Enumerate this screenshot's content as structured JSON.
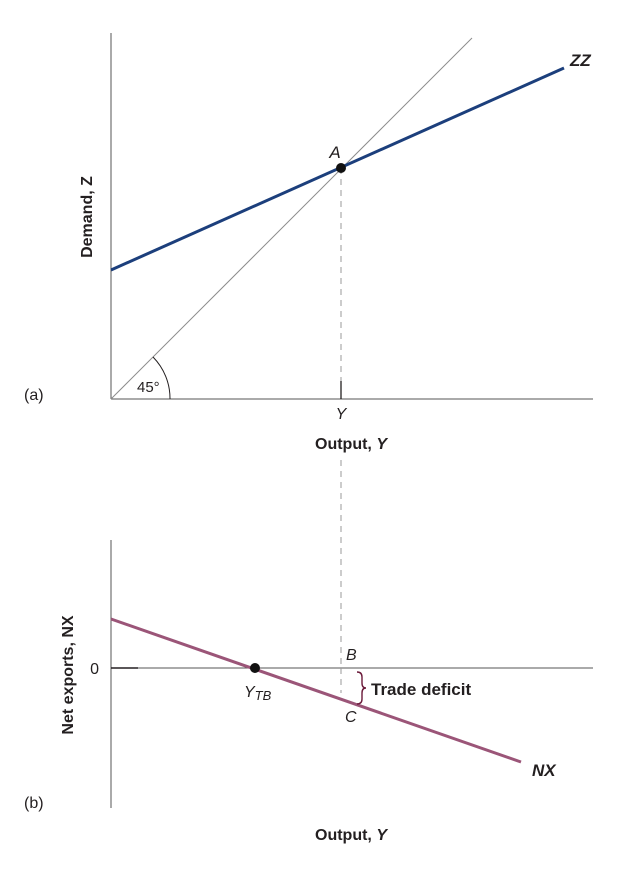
{
  "panel_a": {
    "tag": "(a)",
    "y_axis_label": "Demand, Z",
    "x_axis_label": "Output, ",
    "x_axis_symbol": "Y",
    "tick_label": "Y",
    "angle_label": "45°",
    "point_label": "A",
    "curve_label": "ZZ",
    "curve_color": "#1c3f7c"
  },
  "panel_b": {
    "tag": "(b)",
    "y_axis_label": "Net exports, NX",
    "x_axis_label": "Output, ",
    "x_axis_symbol": "Y",
    "zero_label": "0",
    "point_tb_main": "Y",
    "point_tb_sub": "TB",
    "point_b_label": "B",
    "point_c_label": "C",
    "bracket_label": "Trade deficit",
    "curve_label": "NX",
    "curve_color": "#9b5578",
    "bracket_color": "#6b1a3a"
  }
}
